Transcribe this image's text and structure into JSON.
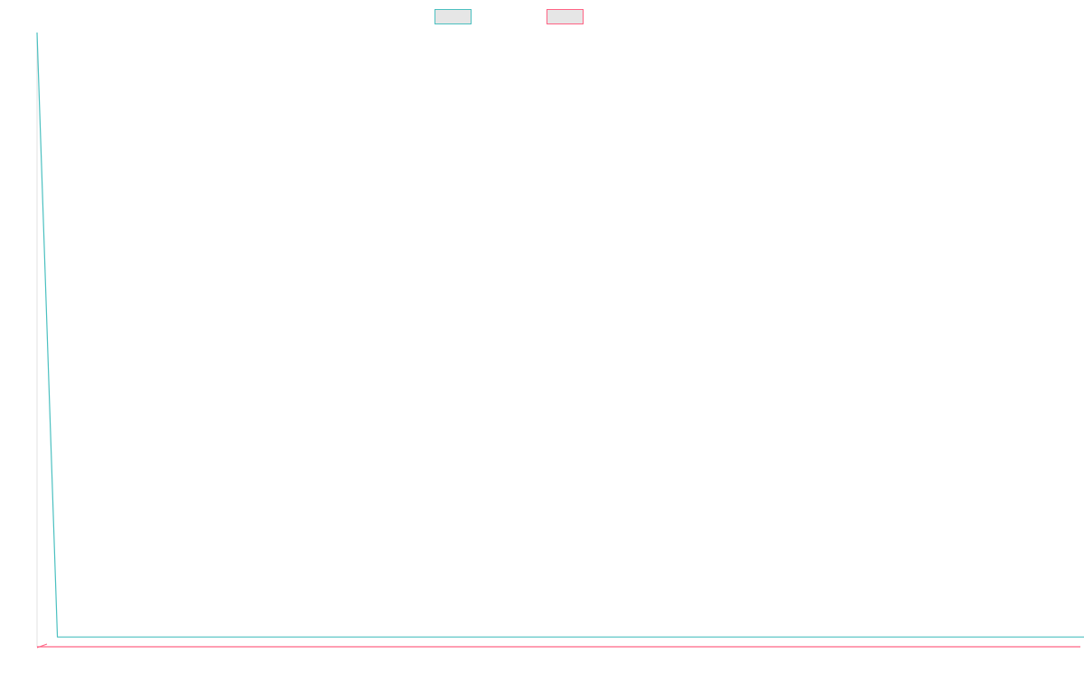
{
  "chart_data": {
    "type": "line",
    "title": "",
    "xlabel": "",
    "ylabel": "",
    "grid": false,
    "legend_position": "top",
    "x": [
      0,
      1,
      2,
      3,
      4,
      5,
      6,
      7,
      8,
      9,
      10,
      11,
      12,
      13,
      14,
      15,
      16,
      17,
      18,
      19,
      20,
      21,
      22,
      23,
      24,
      25,
      26,
      27,
      28,
      29,
      30,
      31,
      32,
      33,
      34,
      35,
      36,
      37,
      38,
      39,
      40,
      41,
      42,
      43,
      44,
      45,
      46,
      47,
      48,
      49,
      50,
      51,
      52,
      53,
      54,
      55,
      56,
      57,
      58,
      59,
      60,
      61,
      62,
      63,
      64,
      65,
      66,
      67,
      68,
      69,
      70,
      71,
      72,
      73,
      74,
      75,
      76,
      77,
      78,
      79,
      80,
      81,
      82,
      83,
      84,
      85,
      86,
      87,
      88,
      89,
      90,
      91,
      92,
      93,
      94,
      95,
      96,
      97,
      98,
      99,
      100
    ],
    "xlim": [
      0,
      100
    ],
    "ylim": [
      0,
      100
    ],
    "series": [
      {
        "color": "#4bc0c0",
        "fill": "#e6e6e6",
        "values": [
          100,
          1,
          1,
          1,
          1,
          1,
          1,
          1,
          1,
          1,
          1,
          1,
          1,
          1,
          1,
          1,
          1,
          1,
          1,
          1,
          1,
          1,
          1,
          1,
          1,
          1,
          1,
          1,
          1,
          1,
          1,
          1,
          1,
          1,
          1,
          1,
          1,
          1,
          1,
          1,
          1,
          1,
          1,
          1,
          1,
          1,
          1,
          1,
          1,
          1,
          1,
          1,
          1,
          1,
          1,
          1,
          1,
          1,
          1,
          1,
          1,
          1,
          1,
          1,
          1,
          1,
          1,
          1,
          1,
          1,
          1,
          1,
          1,
          1,
          1,
          1,
          1,
          1,
          1,
          1,
          1,
          1,
          1,
          1,
          1,
          1,
          1,
          1,
          1,
          1,
          1,
          1,
          1,
          1,
          1,
          1,
          1,
          1,
          1,
          1,
          1
        ]
      },
      {
        "color": "#ff6384",
        "fill": "#e6e6e6",
        "values": [
          0,
          0,
          0,
          0,
          0,
          0,
          0,
          0,
          0,
          0,
          0,
          0,
          0,
          0,
          0,
          0,
          0,
          0,
          0,
          0,
          0,
          0,
          0,
          0,
          0,
          0,
          0,
          0,
          0,
          0,
          0,
          0,
          0,
          0,
          0,
          0,
          0,
          0,
          0,
          0,
          0,
          0,
          0,
          0,
          0,
          0,
          0,
          0,
          0,
          0,
          0,
          0,
          0,
          0,
          0,
          0,
          0,
          0,
          0,
          0,
          0,
          0,
          0,
          0,
          0,
          0,
          0,
          0,
          0,
          0,
          0,
          0,
          0,
          0,
          0,
          0,
          0,
          0,
          0,
          0,
          0,
          0,
          0,
          0,
          0,
          0,
          0,
          0,
          0,
          0,
          0,
          0,
          0,
          0,
          0,
          0,
          0,
          0,
          0,
          0,
          0
        ]
      }
    ]
  }
}
